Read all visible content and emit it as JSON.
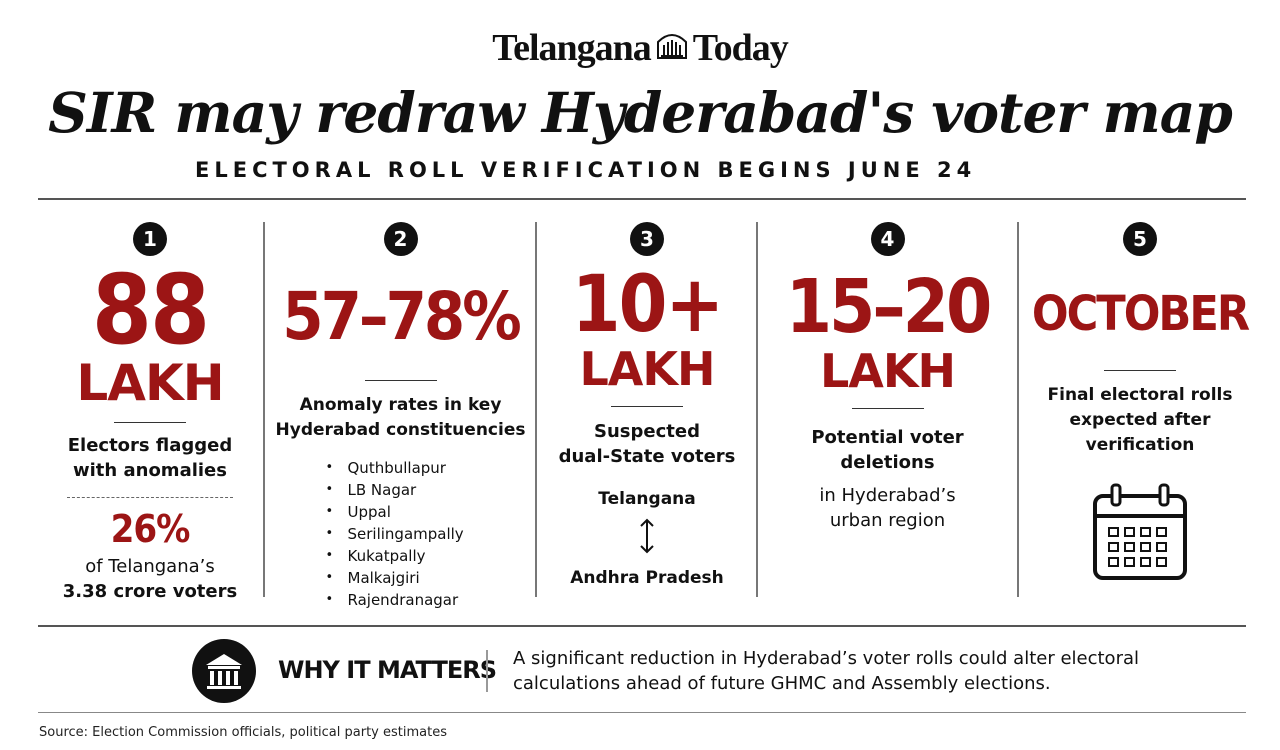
{
  "brand": {
    "name_left": "Telangana",
    "name_right": "Today",
    "crest_icon": "telangana-crest-icon"
  },
  "headline": "SIR may redraw Hyderabad's voter map",
  "subhead": "ELECTORAL ROLL VERIFICATION BEGINS JUNE 24",
  "accent_color": "#9c1515",
  "columns": [
    {
      "number": "1",
      "big": "88",
      "unit": "LAKH",
      "desc_line1": "Electors flagged",
      "desc_line2": "with anomalies",
      "stat": "26%",
      "stat_line1": "of Telangana’s",
      "stat_line2": "3.38 crore voters"
    },
    {
      "number": "2",
      "big": "57–78%",
      "desc_line1": "Anomaly rates in key",
      "desc_line2": "Hyderabad constituencies",
      "constituencies": [
        "Quthbullapur",
        "LB Nagar",
        "Uppal",
        "Serilingampally",
        "Kukatpally",
        "Malkajgiri",
        "Rajendranagar"
      ]
    },
    {
      "number": "3",
      "big": "10+",
      "unit": "LAKH",
      "desc_line1": "Suspected",
      "desc_line2": "dual-State voters",
      "state_a": "Telangana",
      "state_b": "Andhra Pradesh",
      "arrow_icon": "up-down-arrow-icon"
    },
    {
      "number": "4",
      "big": "15–20",
      "unit": "LAKH",
      "desc_line1": "Potential voter",
      "desc_line2": "deletions",
      "plain_line1": "in Hyderabad’s",
      "plain_line2": "urban region"
    },
    {
      "number": "5",
      "big": "OCTOBER",
      "desc_line1": "Final electoral rolls",
      "desc_line2": "expected after",
      "desc_line3": "verification",
      "calendar_icon": "calendar-icon"
    }
  ],
  "why": {
    "icon": "government-building-icon",
    "title": "WHY IT MATTERS",
    "text_line1": "A significant reduction in Hyderabad’s voter rolls could alter electoral",
    "text_line2": "calculations ahead of future GHMC and Assembly elections."
  },
  "source": "Source: Election Commission officials, political party estimates"
}
